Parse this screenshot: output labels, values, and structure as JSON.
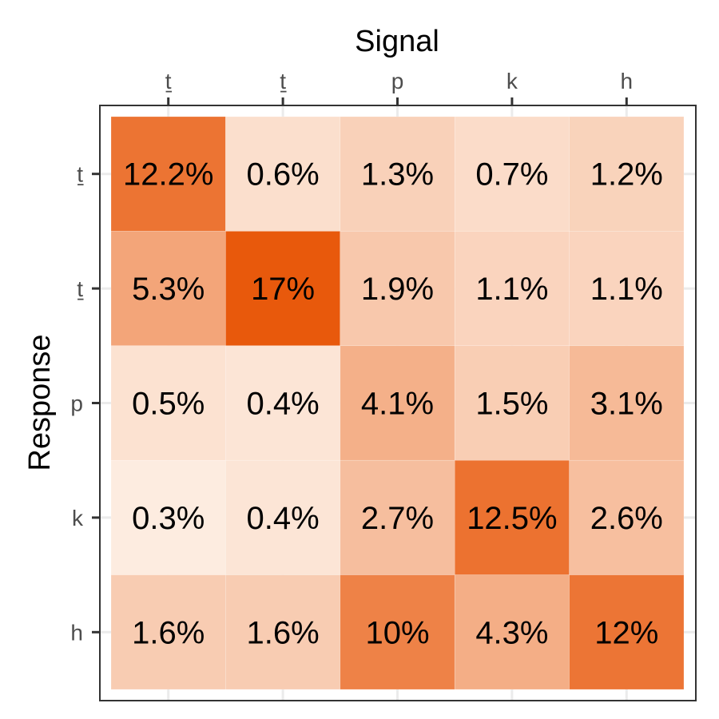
{
  "chart_data": {
    "type": "heatmap",
    "xlabel": "Signal",
    "ylabel": "Response",
    "x_categories": [
      "ṯ",
      "ṯ",
      "p",
      "k",
      "h"
    ],
    "y_categories": [
      "ṯ",
      "ṯ",
      "p",
      "k",
      "h"
    ],
    "x_axis_position": "top",
    "grid": true,
    "legend": "none",
    "color_low": "#fdece0",
    "color_high": "#e8590c",
    "cells": [
      [
        12.2,
        0.6,
        1.3,
        0.7,
        1.2
      ],
      [
        5.3,
        17,
        1.9,
        1.1,
        1.1
      ],
      [
        0.5,
        0.4,
        4.1,
        1.5,
        3.1
      ],
      [
        0.3,
        0.4,
        2.7,
        12.5,
        2.6
      ],
      [
        1.6,
        1.6,
        10,
        4.3,
        12
      ]
    ],
    "cell_labels": [
      [
        "12.2%",
        "0.6%",
        "1.3%",
        "0.7%",
        "1.2%"
      ],
      [
        "5.3%",
        "17%",
        "1.9%",
        "1.1%",
        "1.1%"
      ],
      [
        "0.5%",
        "0.4%",
        "4.1%",
        "1.5%",
        "3.1%"
      ],
      [
        "0.3%",
        "0.4%",
        "2.7%",
        "12.5%",
        "2.6%"
      ],
      [
        "1.6%",
        "1.6%",
        "10%",
        "4.3%",
        "12%"
      ]
    ]
  }
}
